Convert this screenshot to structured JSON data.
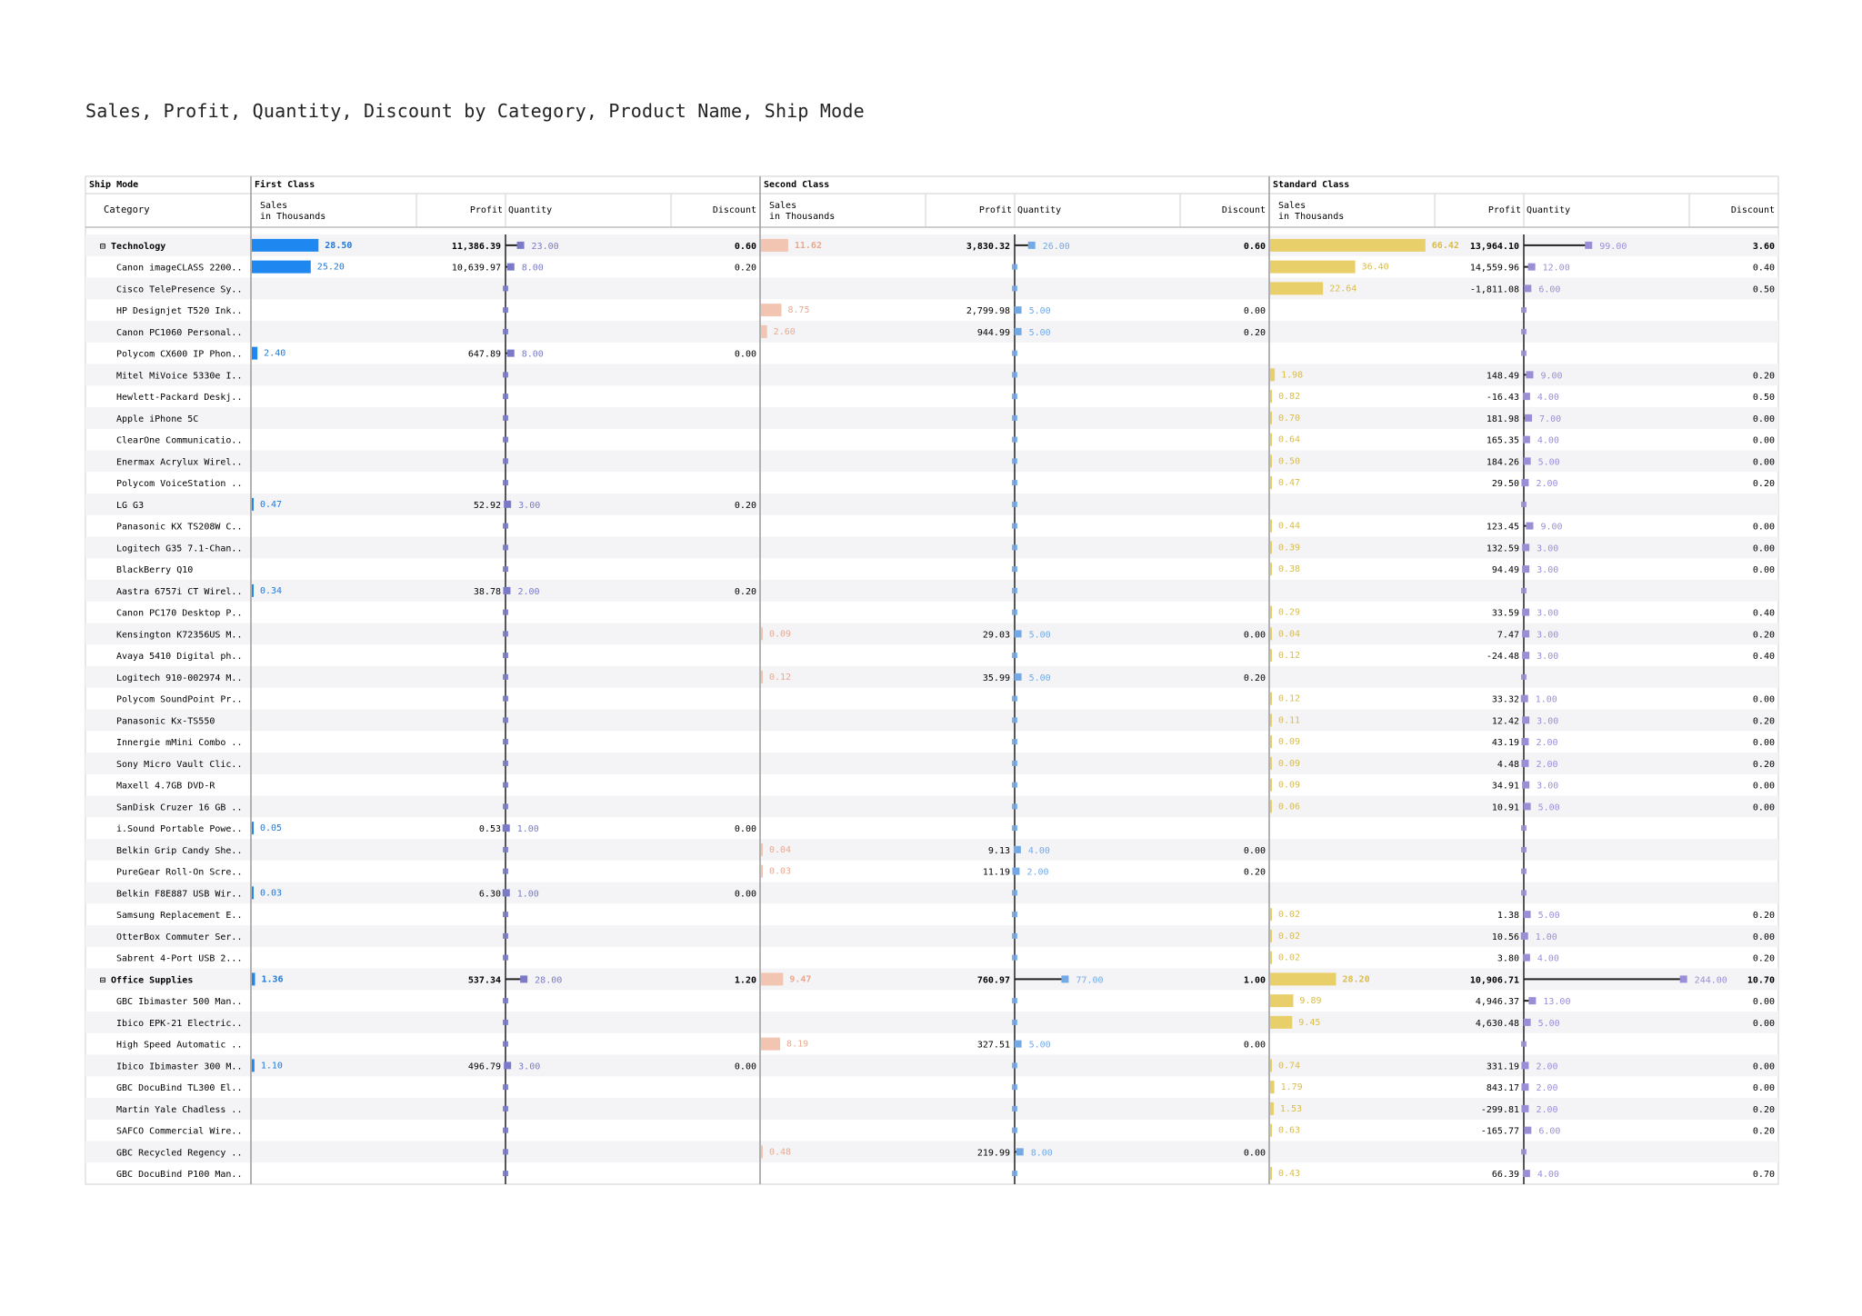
{
  "title": "Sales, Profit, Quantity, Discount by Category, Product Name, Ship Mode",
  "header": {
    "ship_mode_label": "Ship Mode",
    "category_label": "Category",
    "sales_label_1": "Sales",
    "sales_label_2": "in Thousands",
    "profit_label": "Profit",
    "quantity_label": "Quantity",
    "discount_label": "Discount"
  },
  "colors": {
    "First Class": "#1f88f0",
    "Second Class": "#f2c4b2",
    "Standard Class": "#e8cf6a",
    "quantity": "#8a86d0",
    "quantity_first": "#7a7ac8",
    "quantity_second": "#74a9e6",
    "quantity_standard": "#9b8ed6"
  },
  "chart_data": {
    "type": "table",
    "title": "Sales, Profit, Quantity, Discount by Category, Product Name, Ship Mode",
    "ship_modes": [
      "First Class",
      "Second Class",
      "Standard Class"
    ],
    "measures": [
      "Sales in Thousands",
      "Profit",
      "Quantity",
      "Discount"
    ],
    "sales_max": 70,
    "quantity_max": 250,
    "rows": [
      {
        "label": "⊟ Technology",
        "group": true,
        "cells": [
          {
            "sales": "28.50",
            "profit": "11,386.39",
            "qty": "23.00",
            "disc": "0.60"
          },
          {
            "sales": "11.62",
            "profit": "3,830.32",
            "qty": "26.00",
            "disc": "0.60"
          },
          {
            "sales": "66.42",
            "profit": "13,964.10",
            "qty": "99.00",
            "disc": "3.60"
          }
        ]
      },
      {
        "label": "Canon imageCLASS 2200..",
        "cells": [
          {
            "sales": "25.20",
            "profit": "10,639.97",
            "qty": "8.00",
            "disc": "0.20"
          },
          null,
          {
            "sales": "36.40",
            "profit": "14,559.96",
            "qty": "12.00",
            "disc": "0.40"
          }
        ]
      },
      {
        "label": "Cisco TelePresence Sy..",
        "cells": [
          null,
          null,
          {
            "sales": "22.64",
            "profit": "-1,811.08",
            "qty": "6.00",
            "disc": "0.50"
          }
        ]
      },
      {
        "label": "HP Designjet T520 Ink..",
        "cells": [
          null,
          {
            "sales": "8.75",
            "profit": "2,799.98",
            "qty": "5.00",
            "disc": "0.00"
          },
          null
        ]
      },
      {
        "label": "Canon PC1060 Personal..",
        "cells": [
          null,
          {
            "sales": "2.60",
            "profit": "944.99",
            "qty": "5.00",
            "disc": "0.20"
          },
          null
        ]
      },
      {
        "label": "Polycom CX600 IP Phon..",
        "cells": [
          {
            "sales": "2.40",
            "profit": "647.89",
            "qty": "8.00",
            "disc": "0.00"
          },
          null,
          null
        ]
      },
      {
        "label": "Mitel MiVoice 5330e I..",
        "cells": [
          null,
          null,
          {
            "sales": "1.98",
            "profit": "148.49",
            "qty": "9.00",
            "disc": "0.20"
          }
        ]
      },
      {
        "label": "Hewlett-Packard Deskj..",
        "cells": [
          null,
          null,
          {
            "sales": "0.82",
            "profit": "-16.43",
            "qty": "4.00",
            "disc": "0.50"
          }
        ]
      },
      {
        "label": "Apple iPhone 5C",
        "cells": [
          null,
          null,
          {
            "sales": "0.70",
            "profit": "181.98",
            "qty": "7.00",
            "disc": "0.00"
          }
        ]
      },
      {
        "label": "ClearOne Communicatio..",
        "cells": [
          null,
          null,
          {
            "sales": "0.64",
            "profit": "165.35",
            "qty": "4.00",
            "disc": "0.00"
          }
        ]
      },
      {
        "label": "Enermax Acrylux Wirel..",
        "cells": [
          null,
          null,
          {
            "sales": "0.50",
            "profit": "184.26",
            "qty": "5.00",
            "disc": "0.00"
          }
        ]
      },
      {
        "label": "Polycom VoiceStation ..",
        "cells": [
          null,
          null,
          {
            "sales": "0.47",
            "profit": "29.50",
            "qty": "2.00",
            "disc": "0.20"
          }
        ]
      },
      {
        "label": "LG G3",
        "cells": [
          {
            "sales": "0.47",
            "profit": "52.92",
            "qty": "3.00",
            "disc": "0.20"
          },
          null,
          null
        ]
      },
      {
        "label": "Panasonic KX TS208W C..",
        "cells": [
          null,
          null,
          {
            "sales": "0.44",
            "profit": "123.45",
            "qty": "9.00",
            "disc": "0.00"
          }
        ]
      },
      {
        "label": "Logitech G35 7.1-Chan..",
        "cells": [
          null,
          null,
          {
            "sales": "0.39",
            "profit": "132.59",
            "qty": "3.00",
            "disc": "0.00"
          }
        ]
      },
      {
        "label": "BlackBerry Q10",
        "cells": [
          null,
          null,
          {
            "sales": "0.38",
            "profit": "94.49",
            "qty": "3.00",
            "disc": "0.00"
          }
        ]
      },
      {
        "label": "Aastra 6757i CT Wirel..",
        "cells": [
          {
            "sales": "0.34",
            "profit": "38.78",
            "qty": "2.00",
            "disc": "0.20"
          },
          null,
          null
        ]
      },
      {
        "label": "Canon PC170 Desktop P..",
        "cells": [
          null,
          null,
          {
            "sales": "0.29",
            "profit": "33.59",
            "qty": "3.00",
            "disc": "0.40"
          }
        ]
      },
      {
        "label": "Kensington K72356US M..",
        "cells": [
          null,
          {
            "sales": "0.09",
            "profit": "29.03",
            "qty": "5.00",
            "disc": "0.00"
          },
          {
            "sales": "0.04",
            "profit": "7.47",
            "qty": "3.00",
            "disc": "0.20"
          }
        ]
      },
      {
        "label": "Avaya 5410 Digital ph..",
        "cells": [
          null,
          null,
          {
            "sales": "0.12",
            "profit": "-24.48",
            "qty": "3.00",
            "disc": "0.40"
          }
        ]
      },
      {
        "label": "Logitech 910-002974 M..",
        "cells": [
          null,
          {
            "sales": "0.12",
            "profit": "35.99",
            "qty": "5.00",
            "disc": "0.20"
          },
          null
        ]
      },
      {
        "label": "Polycom SoundPoint Pr..",
        "cells": [
          null,
          null,
          {
            "sales": "0.12",
            "profit": "33.32",
            "qty": "1.00",
            "disc": "0.00"
          }
        ]
      },
      {
        "label": "Panasonic Kx-TS550",
        "cells": [
          null,
          null,
          {
            "sales": "0.11",
            "profit": "12.42",
            "qty": "3.00",
            "disc": "0.20"
          }
        ]
      },
      {
        "label": "Innergie mMini Combo ..",
        "cells": [
          null,
          null,
          {
            "sales": "0.09",
            "profit": "43.19",
            "qty": "2.00",
            "disc": "0.00"
          }
        ]
      },
      {
        "label": "Sony Micro Vault Clic..",
        "cells": [
          null,
          null,
          {
            "sales": "0.09",
            "profit": "4.48",
            "qty": "2.00",
            "disc": "0.20"
          }
        ]
      },
      {
        "label": "Maxell 4.7GB DVD-R",
        "cells": [
          null,
          null,
          {
            "sales": "0.09",
            "profit": "34.91",
            "qty": "3.00",
            "disc": "0.00"
          }
        ]
      },
      {
        "label": "SanDisk Cruzer 16 GB ..",
        "cells": [
          null,
          null,
          {
            "sales": "0.06",
            "profit": "10.91",
            "qty": "5.00",
            "disc": "0.00"
          }
        ]
      },
      {
        "label": "i.Sound Portable Powe..",
        "cells": [
          {
            "sales": "0.05",
            "profit": "0.53",
            "qty": "1.00",
            "disc": "0.00"
          },
          null,
          null
        ]
      },
      {
        "label": "Belkin Grip Candy She..",
        "cells": [
          null,
          {
            "sales": "0.04",
            "profit": "9.13",
            "qty": "4.00",
            "disc": "0.00"
          },
          null
        ]
      },
      {
        "label": "PureGear Roll-On Scre..",
        "cells": [
          null,
          {
            "sales": "0.03",
            "profit": "11.19",
            "qty": "2.00",
            "disc": "0.20"
          },
          null
        ]
      },
      {
        "label": "Belkin F8E887 USB Wir..",
        "cells": [
          {
            "sales": "0.03",
            "profit": "6.30",
            "qty": "1.00",
            "disc": "0.00"
          },
          null,
          null
        ]
      },
      {
        "label": "Samsung Replacement E..",
        "cells": [
          null,
          null,
          {
            "sales": "0.02",
            "profit": "1.38",
            "qty": "5.00",
            "disc": "0.20"
          }
        ]
      },
      {
        "label": "OtterBox Commuter Ser..",
        "cells": [
          null,
          null,
          {
            "sales": "0.02",
            "profit": "10.56",
            "qty": "1.00",
            "disc": "0.00"
          }
        ]
      },
      {
        "label": "Sabrent 4-Port USB 2...",
        "cells": [
          null,
          null,
          {
            "sales": "0.02",
            "profit": "3.80",
            "qty": "4.00",
            "disc": "0.20"
          }
        ]
      },
      {
        "label": "⊟ Office Supplies",
        "group": true,
        "cells": [
          {
            "sales": "1.36",
            "profit": "537.34",
            "qty": "28.00",
            "disc": "1.20"
          },
          {
            "sales": "9.47",
            "profit": "760.97",
            "qty": "77.00",
            "disc": "1.00"
          },
          {
            "sales": "28.20",
            "profit": "10,906.71",
            "qty": "244.00",
            "disc": "10.70"
          }
        ]
      },
      {
        "label": "GBC Ibimaster 500 Man..",
        "cells": [
          null,
          null,
          {
            "sales": "9.89",
            "profit": "4,946.37",
            "qty": "13.00",
            "disc": "0.00"
          }
        ]
      },
      {
        "label": "Ibico EPK-21 Electric..",
        "cells": [
          null,
          null,
          {
            "sales": "9.45",
            "profit": "4,630.48",
            "qty": "5.00",
            "disc": "0.00"
          }
        ]
      },
      {
        "label": "High Speed Automatic ..",
        "cells": [
          null,
          {
            "sales": "8.19",
            "profit": "327.51",
            "qty": "5.00",
            "disc": "0.00"
          },
          null
        ]
      },
      {
        "label": "Ibico Ibimaster 300 M..",
        "cells": [
          {
            "sales": "1.10",
            "profit": "496.79",
            "qty": "3.00",
            "disc": "0.00"
          },
          null,
          {
            "sales": "0.74",
            "profit": "331.19",
            "qty": "2.00",
            "disc": "0.00"
          }
        ]
      },
      {
        "label": "GBC DocuBind TL300 El..",
        "cells": [
          null,
          null,
          {
            "sales": "1.79",
            "profit": "843.17",
            "qty": "2.00",
            "disc": "0.00"
          }
        ]
      },
      {
        "label": "Martin Yale Chadless ..",
        "cells": [
          null,
          null,
          {
            "sales": "1.53",
            "profit": "-299.81",
            "qty": "2.00",
            "disc": "0.20"
          }
        ]
      },
      {
        "label": "SAFCO Commercial Wire..",
        "cells": [
          null,
          null,
          {
            "sales": "0.63",
            "profit": "-165.77",
            "qty": "6.00",
            "disc": "0.20"
          }
        ]
      },
      {
        "label": "GBC Recycled Regency ..",
        "cells": [
          null,
          {
            "sales": "0.48",
            "profit": "219.99",
            "qty": "8.00",
            "disc": "0.00"
          },
          null
        ]
      },
      {
        "label": "GBC DocuBind P100 Man..",
        "cells": [
          null,
          null,
          {
            "sales": "0.43",
            "profit": "66.39",
            "qty": "4.00",
            "disc": "0.70"
          }
        ]
      }
    ]
  }
}
